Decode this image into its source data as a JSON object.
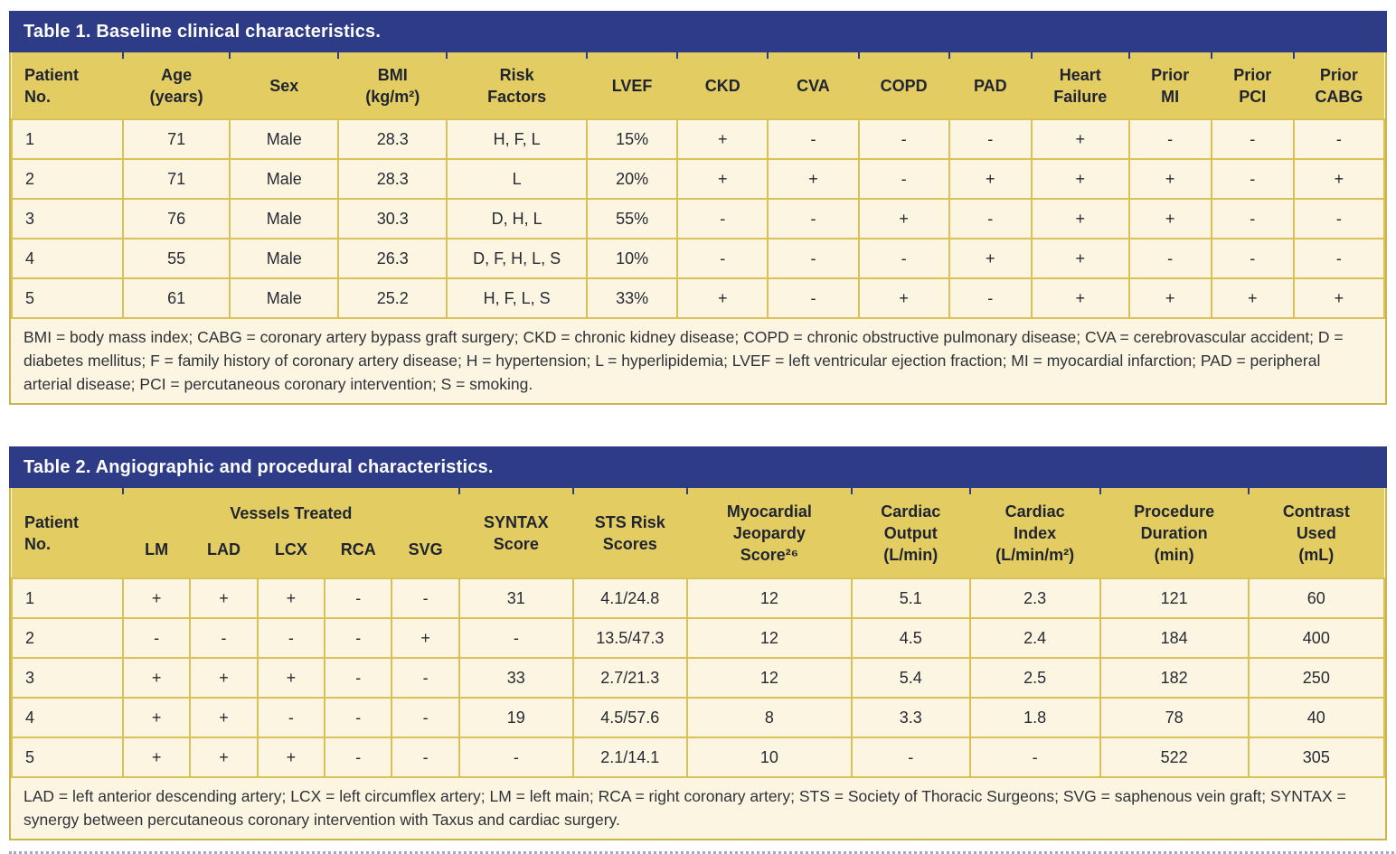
{
  "colors": {
    "title_bar_blue": "#2e3c87",
    "header_gold": "#e3cc62",
    "row_cream": "#fcf5e1",
    "grid_gold": "#d8c258",
    "text_dark": "#23262e"
  },
  "table1": {
    "title": "Table 1. Baseline clinical characteristics.",
    "headers": [
      "Patient\nNo.",
      "Age\n(years)",
      "Sex",
      "BMI\n(kg/m²)",
      "Risk\nFactors",
      "LVEF",
      "CKD",
      "CVA",
      "COPD",
      "PAD",
      "Heart\nFailure",
      "Prior\nMI",
      "Prior\nPCI",
      "Prior\nCABG"
    ],
    "rows": [
      [
        "1",
        "71",
        "Male",
        "28.3",
        "H, F, L",
        "15%",
        "+",
        "-",
        "-",
        "-",
        "+",
        "-",
        "-",
        "-"
      ],
      [
        "2",
        "71",
        "Male",
        "28.3",
        "L",
        "20%",
        "+",
        "+",
        "-",
        "+",
        "+",
        "+",
        "-",
        "+"
      ],
      [
        "3",
        "76",
        "Male",
        "30.3",
        "D, H, L",
        "55%",
        "-",
        "-",
        "+",
        "-",
        "+",
        "+",
        "-",
        "-"
      ],
      [
        "4",
        "55",
        "Male",
        "26.3",
        "D, F, H, L, S",
        "10%",
        "-",
        "-",
        "-",
        "+",
        "+",
        "-",
        "-",
        "-"
      ],
      [
        "5",
        "61",
        "Male",
        "25.2",
        "H, F, L, S",
        "33%",
        "+",
        "-",
        "+",
        "-",
        "+",
        "+",
        "+",
        "+"
      ]
    ],
    "footnote": "BMI = body mass index; CABG = coronary artery bypass graft surgery; CKD = chronic kidney disease; COPD = chronic obstructive pulmonary disease; CVA = cerebrovascular accident; D = diabetes mellitus; F = family history of coronary artery disease; H = hypertension; L = hyperlipidemia; LVEF = left ventricular ejection fraction; MI = myocardial infarction; PAD = peripheral arterial disease; PCI = percutaneous coronary intervention; S = smoking."
  },
  "table2": {
    "title": "Table 2. Angiographic and procedural characteristics.",
    "headers": {
      "patient": "Patient\nNo.",
      "vessels_label": "Vessels Treated",
      "vessels": [
        "LM",
        "LAD",
        "LCX",
        "RCA",
        "SVG"
      ],
      "syntax": "SYNTAX\nScore",
      "sts": "STS Risk\nScores",
      "jeopardy": "Myocardial\nJeopardy\nScore²⁶",
      "output": "Cardiac\nOutput\n(L/min)",
      "index": "Cardiac\nIndex\n(L/min/m²)",
      "duration": "Procedure\nDuration\n(min)",
      "contrast": "Contrast\nUsed\n(mL)"
    },
    "rows": [
      [
        "1",
        "+",
        "+",
        "+",
        "-",
        "-",
        "31",
        "4.1/24.8",
        "12",
        "5.1",
        "2.3",
        "121",
        "60"
      ],
      [
        "2",
        "-",
        "-",
        "-",
        "-",
        "+",
        "-",
        "13.5/47.3",
        "12",
        "4.5",
        "2.4",
        "184",
        "400"
      ],
      [
        "3",
        "+",
        "+",
        "+",
        "-",
        "-",
        "33",
        "2.7/21.3",
        "12",
        "5.4",
        "2.5",
        "182",
        "250"
      ],
      [
        "4",
        "+",
        "+",
        "-",
        "-",
        "-",
        "19",
        "4.5/57.6",
        "8",
        "3.3",
        "1.8",
        "78",
        "40"
      ],
      [
        "5",
        "+",
        "+",
        "+",
        "-",
        "-",
        "-",
        "2.1/14.1",
        "10",
        "-",
        "-",
        "522",
        "305"
      ]
    ],
    "footnote": "LAD = left anterior descending artery; LCX = left circumflex artery; LM = left main; RCA = right coronary artery; STS = Society of Thoracic Surgeons; SVG = saphenous vein graft; SYNTAX = synergy between percutaneous coronary intervention with Taxus and cardiac surgery."
  }
}
